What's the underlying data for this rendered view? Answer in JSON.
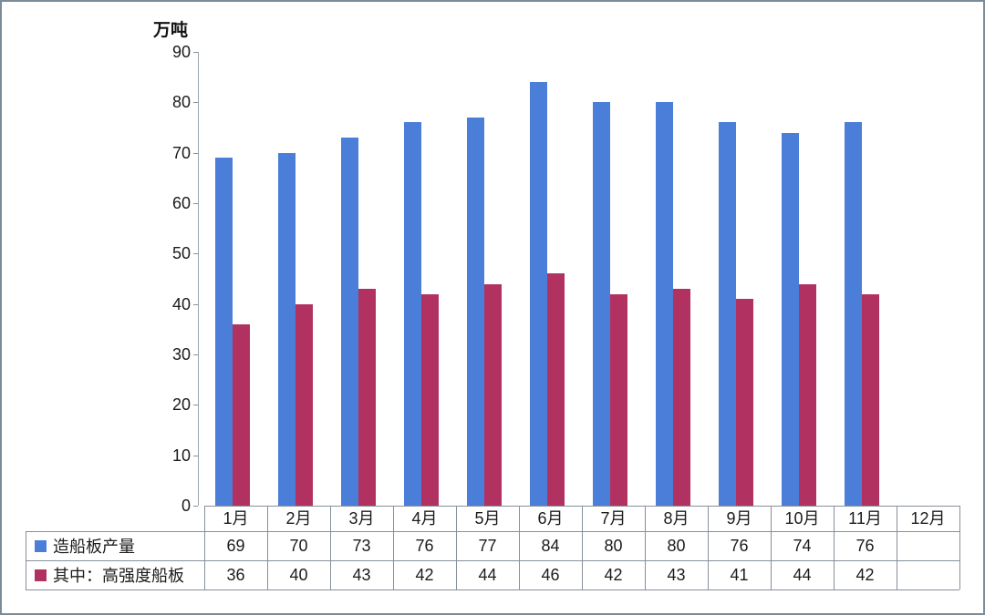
{
  "page": {
    "background_color": "#ffffff",
    "frame_border_color": "#7b8b98",
    "line_color": "#87909a"
  },
  "y_axis": {
    "unit_label": "万吨",
    "tick_labels": [
      "90",
      "80",
      "70",
      "60",
      "50",
      "40",
      "30",
      "20",
      "10",
      "0"
    ]
  },
  "chart_data": {
    "type": "bar",
    "title": "",
    "ylabel": "万吨",
    "xlabel": "",
    "ylim": [
      0,
      90
    ],
    "ytick_step": 10,
    "grid": false,
    "legend_position": "table-left",
    "categories": [
      "1月",
      "2月",
      "3月",
      "4月",
      "5月",
      "6月",
      "7月",
      "8月",
      "9月",
      "10月",
      "11月",
      "12月"
    ],
    "series": [
      {
        "name": "造船板产量",
        "color": "#4a7ed8",
        "values": [
          69,
          70,
          73,
          76,
          77,
          84,
          80,
          80,
          76,
          74,
          76,
          null
        ]
      },
      {
        "name": "其中：高强度船板",
        "color": "#b13261",
        "values": [
          36,
          40,
          43,
          42,
          44,
          46,
          42,
          43,
          41,
          44,
          42,
          null
        ]
      }
    ]
  }
}
